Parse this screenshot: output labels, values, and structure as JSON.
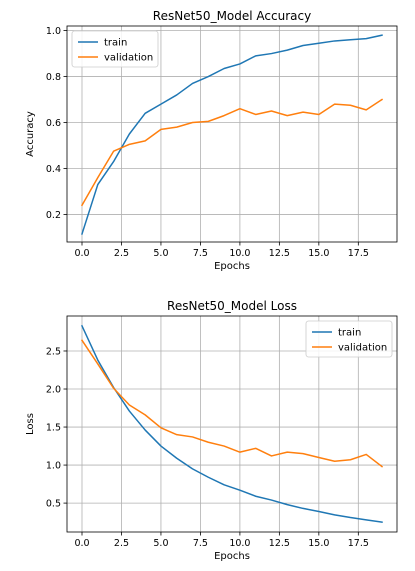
{
  "chart_data": [
    {
      "type": "line",
      "title": "ResNet50_Model Accuracy",
      "xlabel": "Epochs",
      "ylabel": "Accuracy",
      "xlim": [
        -0.95,
        19.95
      ],
      "ylim": [
        0.08,
        1.02
      ],
      "xticks": [
        0,
        2.5,
        5,
        7.5,
        10,
        12.5,
        15,
        17.5
      ],
      "xtick_labels": [
        "0.0",
        "2.5",
        "5.0",
        "7.5",
        "10.0",
        "12.5",
        "15.0",
        "17.5"
      ],
      "yticks": [
        0.2,
        0.4,
        0.6,
        0.8,
        1.0
      ],
      "ytick_labels": [
        "0.2",
        "0.4",
        "0.6",
        "0.8",
        "1.0"
      ],
      "grid": true,
      "legend": "upper-left",
      "x": [
        0,
        1,
        2,
        3,
        4,
        5,
        6,
        7,
        8,
        9,
        10,
        11,
        12,
        13,
        14,
        15,
        16,
        17,
        18,
        19
      ],
      "series": [
        {
          "name": "train",
          "color": "#1f77b4",
          "values": [
            0.115,
            0.33,
            0.43,
            0.55,
            0.64,
            0.68,
            0.72,
            0.77,
            0.8,
            0.835,
            0.855,
            0.89,
            0.9,
            0.915,
            0.935,
            0.945,
            0.955,
            0.96,
            0.965,
            0.98
          ]
        },
        {
          "name": "validation",
          "color": "#ff7f0e",
          "values": [
            0.24,
            0.36,
            0.475,
            0.505,
            0.52,
            0.57,
            0.58,
            0.6,
            0.605,
            0.63,
            0.66,
            0.635,
            0.65,
            0.63,
            0.645,
            0.635,
            0.68,
            0.675,
            0.655,
            0.7
          ]
        }
      ]
    },
    {
      "type": "line",
      "title": "ResNet50_Model Loss",
      "xlabel": "Epochs",
      "ylabel": "Loss",
      "xlim": [
        -0.95,
        19.95
      ],
      "ylim": [
        0.12,
        2.96
      ],
      "xticks": [
        0,
        2.5,
        5,
        7.5,
        10,
        12.5,
        15,
        17.5
      ],
      "xtick_labels": [
        "0.0",
        "2.5",
        "5.0",
        "7.5",
        "10.0",
        "12.5",
        "15.0",
        "17.5"
      ],
      "yticks": [
        0.5,
        1.0,
        1.5,
        2.0,
        2.5
      ],
      "ytick_labels": [
        "0.5",
        "1.0",
        "1.5",
        "2.0",
        "2.5"
      ],
      "grid": true,
      "legend": "upper-right",
      "x": [
        0,
        1,
        2,
        3,
        4,
        5,
        6,
        7,
        8,
        9,
        10,
        11,
        12,
        13,
        14,
        15,
        16,
        17,
        18,
        19
      ],
      "series": [
        {
          "name": "train",
          "color": "#1f77b4",
          "values": [
            2.83,
            2.38,
            2.02,
            1.71,
            1.46,
            1.25,
            1.09,
            0.95,
            0.84,
            0.74,
            0.67,
            0.59,
            0.54,
            0.48,
            0.43,
            0.39,
            0.345,
            0.31,
            0.28,
            0.25
          ]
        },
        {
          "name": "validation",
          "color": "#ff7f0e",
          "values": [
            2.64,
            2.33,
            2.01,
            1.79,
            1.66,
            1.49,
            1.4,
            1.37,
            1.3,
            1.25,
            1.17,
            1.22,
            1.12,
            1.17,
            1.15,
            1.1,
            1.05,
            1.07,
            1.14,
            0.98
          ]
        }
      ]
    }
  ]
}
